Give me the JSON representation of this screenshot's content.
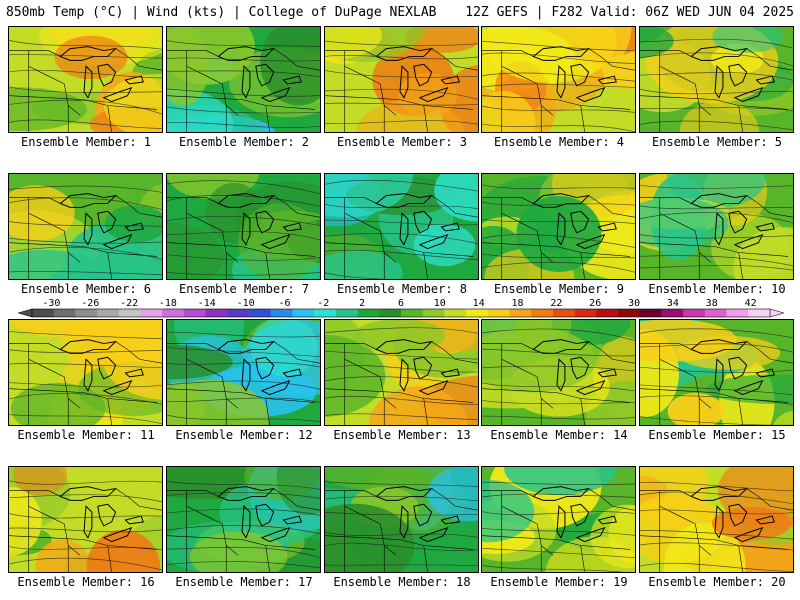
{
  "header": {
    "left": "850mb Temp (°C) | Wind (kts) | College of DuPage NEXLAB",
    "right": "12Z GEFS | F282 Valid: 06Z WED JUN 04 2025"
  },
  "colorbar": {
    "ticks": [
      "-30",
      "-26",
      "-22",
      "-18",
      "-14",
      "-10",
      "-6",
      "-2",
      "2",
      "6",
      "10",
      "14",
      "18",
      "22",
      "26",
      "30",
      "34",
      "38",
      "42"
    ],
    "colors": [
      "#4d4d4d",
      "#6f6f6f",
      "#8e8e8e",
      "#a8a8a8",
      "#c4c4c4",
      "#dfa3e6",
      "#cf6fde",
      "#b84bd0",
      "#8a34c2",
      "#5a39c8",
      "#3350d8",
      "#2a8ae6",
      "#29c2ee",
      "#2de2d2",
      "#27c48a",
      "#1fa840",
      "#2a8f2a",
      "#58b428",
      "#8cc82a",
      "#c3dc26",
      "#f2ea18",
      "#f8cf18",
      "#f4a818",
      "#ee7d16",
      "#e65014",
      "#d82818",
      "#b81010",
      "#8a0808",
      "#6a0030",
      "#9a1070",
      "#c838a8",
      "#e060d0",
      "#f0a0e8",
      "#f8d0f4"
    ]
  },
  "members": [
    {
      "label": "Ensemble Member: 1",
      "palette": "warm"
    },
    {
      "label": "Ensemble Member: 2",
      "palette": "cool"
    },
    {
      "label": "Ensemble Member: 3",
      "palette": "warm"
    },
    {
      "label": "Ensemble Member: 4",
      "palette": "warm"
    },
    {
      "label": "Ensemble Member: 5",
      "palette": "mixed"
    },
    {
      "label": "Ensemble Member: 6",
      "palette": "mixed"
    },
    {
      "label": "Ensemble Member: 7",
      "palette": "cool"
    },
    {
      "label": "Ensemble Member: 8",
      "palette": "cool"
    },
    {
      "label": "Ensemble Member: 9",
      "palette": "mixed"
    },
    {
      "label": "Ensemble Member: 10",
      "palette": "mixed"
    },
    {
      "label": "Ensemble Member: 11",
      "palette": "warm"
    },
    {
      "label": "Ensemble Member: 12",
      "palette": "cool"
    },
    {
      "label": "Ensemble Member: 13",
      "palette": "warm"
    },
    {
      "label": "Ensemble Member: 14",
      "palette": "mixed"
    },
    {
      "label": "Ensemble Member: 15",
      "palette": "mixed"
    },
    {
      "label": "Ensemble Member: 16",
      "palette": "warm"
    },
    {
      "label": "Ensemble Member: 17",
      "palette": "cool"
    },
    {
      "label": "Ensemble Member: 18",
      "palette": "cool"
    },
    {
      "label": "Ensemble Member: 19",
      "palette": "mixed"
    },
    {
      "label": "Ensemble Member: 20",
      "palette": "warm"
    }
  ]
}
